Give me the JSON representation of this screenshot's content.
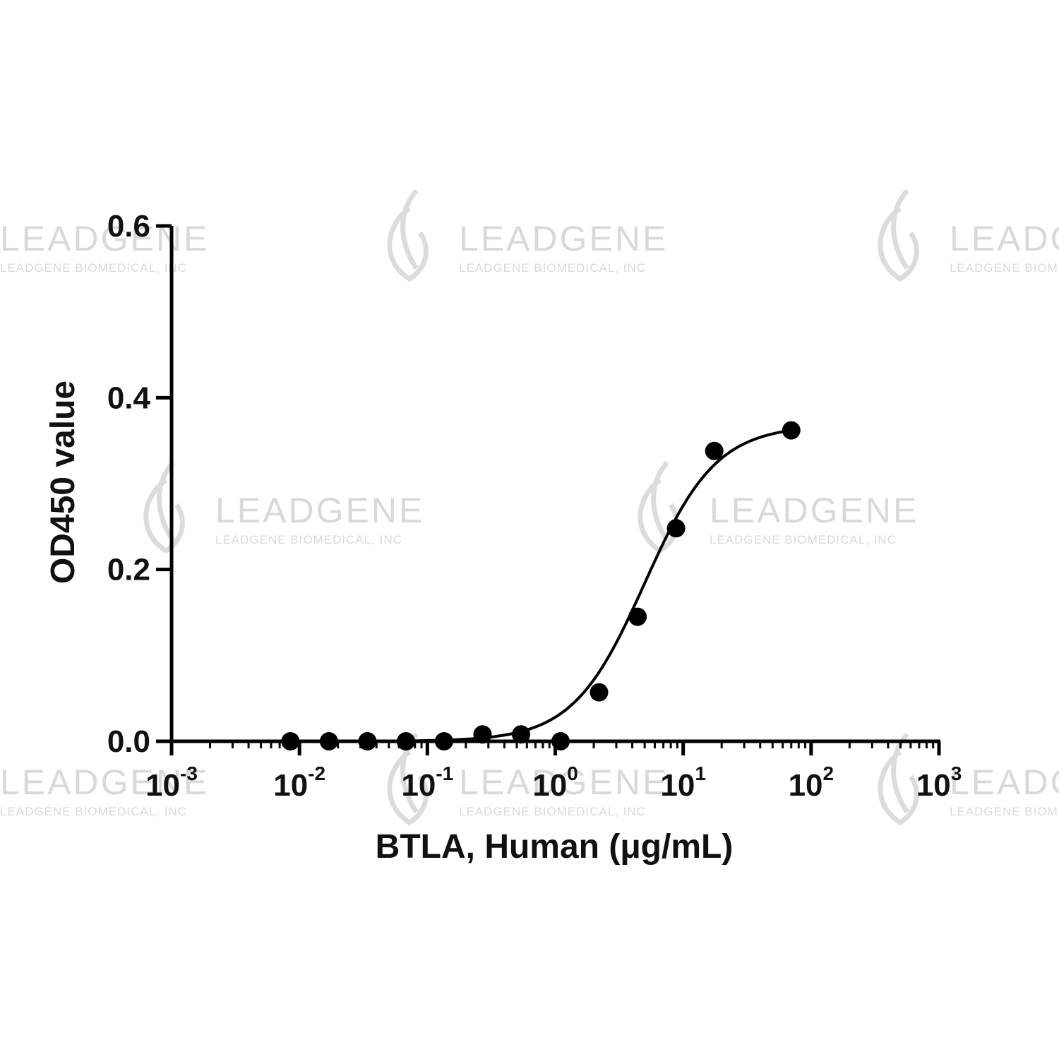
{
  "watermark": {
    "brand": "LEADGENE",
    "subtext": "LEADGENE BIOMEDICAL, INC"
  },
  "chart_data": {
    "type": "scatter",
    "xlabel": "BTLA, Human (μg/mL)",
    "ylabel": "OD450 value",
    "x_scale": "log",
    "xlim": [
      0.001,
      1000
    ],
    "ylim": [
      0,
      0.6
    ],
    "x_ticks": [
      {
        "base": "10",
        "exp": "-3"
      },
      {
        "base": "10",
        "exp": "-2"
      },
      {
        "base": "10",
        "exp": "-1"
      },
      {
        "base": "10",
        "exp": "0"
      },
      {
        "base": "10",
        "exp": "1"
      },
      {
        "base": "10",
        "exp": "2"
      },
      {
        "base": "10",
        "exp": "3"
      }
    ],
    "y_ticks": [
      "0.0",
      "0.2",
      "0.4",
      "0.6"
    ],
    "grid": false,
    "legend": "none",
    "marker_color": "#000000",
    "series": [
      {
        "points": [
          {
            "x": 0.0085,
            "y": 0.0
          },
          {
            "x": 0.017,
            "y": 0.0
          },
          {
            "x": 0.034,
            "y": 0.0
          },
          {
            "x": 0.068,
            "y": 0.0
          },
          {
            "x": 0.135,
            "y": 0.0
          },
          {
            "x": 0.27,
            "y": 0.008
          },
          {
            "x": 0.54,
            "y": 0.008
          },
          {
            "x": 1.1,
            "y": 0.0
          },
          {
            "x": 2.2,
            "y": 0.057
          },
          {
            "x": 4.4,
            "y": 0.145
          },
          {
            "x": 8.8,
            "y": 0.248
          },
          {
            "x": 17.5,
            "y": 0.338
          },
          {
            "x": 70,
            "y": 0.362
          }
        ],
        "fit": {
          "model": "4-parameter logistic",
          "bottom": 0.0,
          "top": 0.368,
          "ec50": 5.0,
          "hill": 1.55,
          "x_range": [
            0.06,
            70
          ]
        }
      }
    ]
  }
}
